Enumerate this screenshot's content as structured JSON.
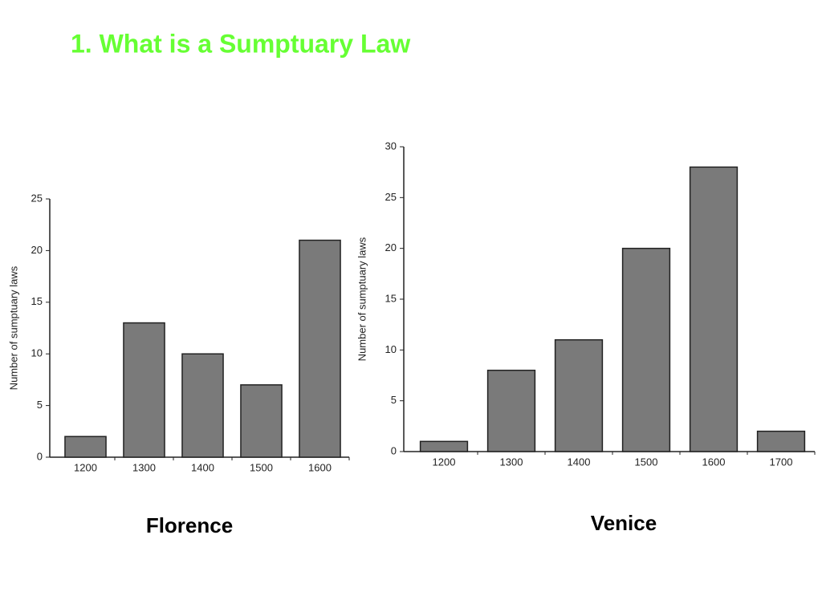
{
  "title": "1. What is a Sumptuary Law",
  "chart_data": [
    {
      "type": "bar",
      "title": "Florence",
      "y_label": "Number of sumptuary laws",
      "categories": [
        "1200",
        "1300",
        "1400",
        "1500",
        "1600"
      ],
      "values": [
        2,
        13,
        10,
        7,
        21
      ],
      "color": "#7a7a7a",
      "ylim": [
        0,
        25
      ],
      "yticks": [
        0,
        5,
        10,
        15,
        20,
        25
      ],
      "grid": false
    },
    {
      "type": "bar",
      "title": "Venice",
      "y_label": "Number of sumptuary laws",
      "categories": [
        "1200",
        "1300",
        "1400",
        "1500",
        "1600",
        "1700"
      ],
      "values": [
        1,
        8,
        11,
        20,
        28,
        2
      ],
      "color": "#7a7a7a",
      "ylim": [
        0,
        30
      ],
      "yticks": [
        0,
        5,
        10,
        15,
        20,
        25,
        30
      ],
      "grid": false
    }
  ]
}
